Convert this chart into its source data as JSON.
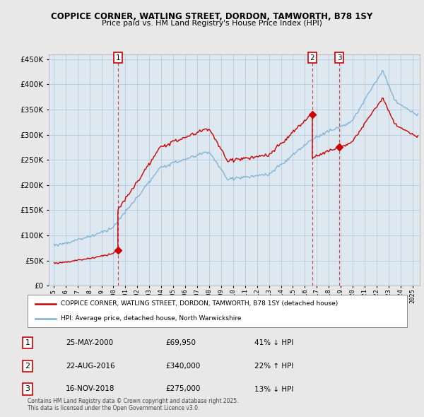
{
  "title1": "COPPICE CORNER, WATLING STREET, DORDON, TAMWORTH, B78 1SY",
  "title2": "Price paid vs. HM Land Registry's House Price Index (HPI)",
  "legend_label1": "COPPICE CORNER, WATLING STREET, DORDON, TAMWORTH, B78 1SY (detached house)",
  "legend_label2": "HPI: Average price, detached house, North Warwickshire",
  "table_rows": [
    {
      "num": "1",
      "date": "25-MAY-2000",
      "price": "£69,950",
      "hpi": "41% ↓ HPI"
    },
    {
      "num": "2",
      "date": "22-AUG-2016",
      "price": "£340,000",
      "hpi": "22% ↑ HPI"
    },
    {
      "num": "3",
      "date": "16-NOV-2018",
      "price": "£275,000",
      "hpi": "13% ↓ HPI"
    }
  ],
  "footnote": "Contains HM Land Registry data © Crown copyright and database right 2025.\nThis data is licensed under the Open Government Licence v3.0.",
  "sale_prices": [
    69950,
    340000,
    275000
  ],
  "ylim": [
    0,
    460000
  ],
  "yticks": [
    0,
    50000,
    100000,
    150000,
    200000,
    250000,
    300000,
    350000,
    400000,
    450000
  ],
  "background_color": "#e8e8e8",
  "plot_bg": "#dde8f0",
  "red_color": "#cc0000",
  "blue_color": "#7bafd4"
}
